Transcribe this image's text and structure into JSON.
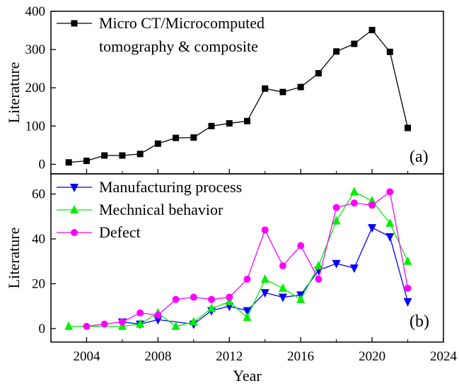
{
  "chart_data": [
    {
      "type": "line",
      "panel_label": "(a)",
      "ylabel": "Literature",
      "xlabel": "",
      "xlim": [
        2002,
        2024
      ],
      "ylim": [
        -25,
        400
      ],
      "yticks": [
        0,
        100,
        200,
        300,
        400
      ],
      "xticks": [
        2004,
        2008,
        2012,
        2016,
        2020,
        2024
      ],
      "legend_position": "top-left",
      "series": [
        {
          "name": "Micro CT/Microcomputed tomography & composite",
          "legend_lines": [
            "Micro CT/Microcomputed",
            "tomography & composite"
          ],
          "marker": "square",
          "color": "#000000",
          "x": [
            2003,
            2004,
            2005,
            2006,
            2007,
            2008,
            2009,
            2010,
            2011,
            2012,
            2013,
            2014,
            2015,
            2016,
            2017,
            2018,
            2019,
            2020,
            2021,
            2022
          ],
          "y": [
            5,
            9,
            23,
            23,
            27,
            54,
            69,
            70,
            100,
            107,
            113,
            198,
            189,
            202,
            238,
            295,
            315,
            351,
            294,
            95
          ]
        }
      ]
    },
    {
      "type": "line",
      "panel_label": "(b)",
      "ylabel": "Literature",
      "xlabel": "Year",
      "xlim": [
        2002,
        2024
      ],
      "ylim": [
        -6,
        69
      ],
      "yticks": [
        0,
        20,
        40,
        60
      ],
      "xticks": [
        2004,
        2008,
        2012,
        2016,
        2020,
        2024
      ],
      "legend_position": "top-left",
      "series": [
        {
          "name": "Manufacturing process",
          "marker": "triangle-down",
          "color": "#0000ff",
          "x": [
            2006,
            2007,
            2008,
            2010,
            2011,
            2012,
            2013,
            2014,
            2015,
            2016,
            2017,
            2018,
            2019,
            2020,
            2021,
            2022
          ],
          "y": [
            3,
            2,
            4,
            2,
            8,
            10,
            8,
            16,
            14,
            15,
            26,
            29,
            27,
            45,
            41,
            12
          ]
        },
        {
          "name": "Mechnical behavior",
          "marker": "triangle-up",
          "color": "#00ee00",
          "x": [
            2003,
            2006,
            2007,
            2008,
            2009,
            2010,
            2011,
            2012,
            2013,
            2014,
            2015,
            2016,
            2017,
            2018,
            2019,
            2020,
            2021,
            2022
          ],
          "y": [
            1,
            1,
            2,
            7,
            1,
            3,
            9,
            12,
            5,
            22,
            18,
            13,
            28,
            48,
            61,
            57,
            47,
            30
          ]
        },
        {
          "name": "Defect",
          "marker": "circle",
          "color": "#ff00ff",
          "x": [
            2004,
            2005,
            2006,
            2007,
            2008,
            2009,
            2010,
            2011,
            2012,
            2013,
            2014,
            2015,
            2016,
            2017,
            2018,
            2019,
            2020,
            2021,
            2022
          ],
          "y": [
            1,
            2,
            3,
            7,
            6,
            13,
            14,
            13,
            14,
            22,
            44,
            28,
            37,
            22,
            54,
            56,
            55,
            61,
            18
          ]
        }
      ]
    }
  ]
}
